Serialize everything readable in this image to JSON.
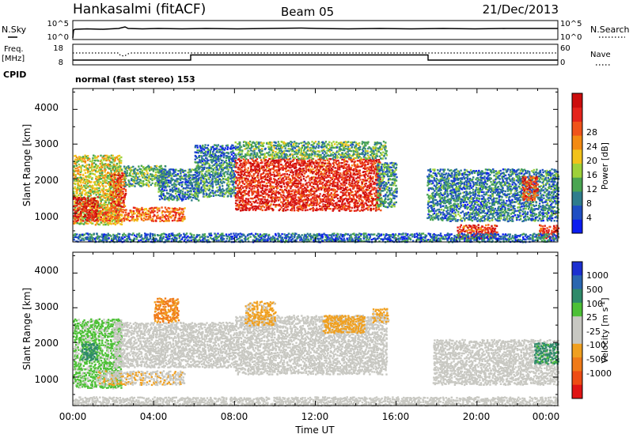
{
  "header": {
    "station": "Hankasalmi (fitACF)",
    "beam": "Beam 05",
    "date": "21/Dec/2013"
  },
  "noise_panel": {
    "left_label": "N.Sky",
    "right_label": "N.Search",
    "left_ticks": [
      "10^5",
      "10^0"
    ],
    "right_ticks": [
      "10^5",
      "10^0"
    ]
  },
  "freq_panel": {
    "left_label_1": "Freq.",
    "left_label_2": "[MHz]",
    "right_label": "Nave",
    "left_ticks": [
      "18",
      "8"
    ],
    "right_ticks": [
      "60",
      "0"
    ]
  },
  "cpid": {
    "label": "CPID",
    "text": "normal (fast stereo) 153"
  },
  "chart_data": [
    {
      "type": "heatmap",
      "name": "power",
      "ylabel": "Slant Range [km]",
      "xlabel": "",
      "y_ticks": [
        "1000",
        "2000",
        "3000",
        "4000"
      ],
      "ylim": [
        180,
        4600
      ],
      "xlim": [
        0,
        24
      ],
      "colorbar": {
        "label": "Power [dB]",
        "ticks": [
          "4",
          "8",
          "12",
          "16",
          "20",
          "24",
          "28"
        ],
        "colors": [
          "#0b1cf0",
          "#1f4ec3",
          "#2f7d8d",
          "#4aa552",
          "#9ed13a",
          "#f2c21a",
          "#f38a12",
          "#f0531a",
          "#e5231b",
          "#cc0d0d"
        ]
      },
      "regions": [
        {
          "t0": 0.0,
          "t1": 2.4,
          "r0": 700,
          "r1": 2700,
          "value": 16
        },
        {
          "t0": 0.0,
          "t1": 1.2,
          "r0": 800,
          "r1": 1500,
          "value": 27
        },
        {
          "t0": 1.2,
          "t1": 5.5,
          "r0": 800,
          "r1": 1200,
          "value": 22
        },
        {
          "t0": 1.8,
          "t1": 2.6,
          "r0": 1200,
          "r1": 2200,
          "value": 24
        },
        {
          "t0": 2.5,
          "t1": 4.6,
          "r0": 1800,
          "r1": 2400,
          "value": 12
        },
        {
          "t0": 4.2,
          "t1": 6.2,
          "r0": 1400,
          "r1": 2300,
          "value": 9
        },
        {
          "t0": 6.0,
          "t1": 8.0,
          "r0": 1500,
          "r1": 2500,
          "value": 10
        },
        {
          "t0": 6.0,
          "t1": 8.0,
          "r0": 2500,
          "r1": 3000,
          "value": 8
        },
        {
          "t0": 8.0,
          "t1": 15.2,
          "r0": 1100,
          "r1": 2600,
          "value": 26
        },
        {
          "t0": 8.0,
          "t1": 15.5,
          "r0": 2600,
          "r1": 3100,
          "value": 12
        },
        {
          "t0": 15.0,
          "t1": 16.0,
          "r0": 1200,
          "r1": 2500,
          "value": 10
        },
        {
          "t0": 17.5,
          "t1": 24.0,
          "r0": 800,
          "r1": 2300,
          "value": 9
        },
        {
          "t0": 22.2,
          "t1": 23.0,
          "r0": 1400,
          "r1": 2100,
          "value": 24
        },
        {
          "t0": 19.0,
          "t1": 21.0,
          "r0": 300,
          "r1": 700,
          "value": 25
        },
        {
          "t0": 23.0,
          "t1": 24.0,
          "r0": 300,
          "r1": 700,
          "value": 26
        },
        {
          "t0": 0.0,
          "t1": 24.0,
          "r0": 200,
          "r1": 450,
          "value": 8
        }
      ]
    },
    {
      "type": "heatmap",
      "name": "velocity",
      "ylabel": "Slant Range [km]",
      "xlabel": "Time UT",
      "x_ticks": [
        "00:00",
        "04:00",
        "08:00",
        "12:00",
        "16:00",
        "20:00",
        "00:00"
      ],
      "y_ticks": [
        "1000",
        "2000",
        "3000",
        "4000"
      ],
      "ylim": [
        180,
        4600
      ],
      "xlim": [
        0,
        24
      ],
      "colorbar": {
        "label": "Velocity [m s",
        "label_superscript": "-1",
        "label_close": "]",
        "ticks": [
          "1000",
          "500",
          "100",
          "25",
          "-25",
          "-100",
          "-500",
          "-1000"
        ],
        "colors": [
          "#1b2fd0",
          "#2a66b0",
          "#2f8a6a",
          "#4dc036",
          "#c8c8c2",
          "#c8c8c2",
          "#f0a020",
          "#f07a18",
          "#ee4c14",
          "#e01414"
        ]
      },
      "regions": [
        {
          "t0": 0.0,
          "t1": 2.4,
          "r0": 700,
          "r1": 2700,
          "value": 40
        },
        {
          "t0": 0.4,
          "t1": 1.2,
          "r0": 1500,
          "r1": 2000,
          "value": 300
        },
        {
          "t0": 1.2,
          "t1": 5.5,
          "r0": 800,
          "r1": 1200,
          "value": -80
        },
        {
          "t0": 2.0,
          "t1": 8.0,
          "r0": 1300,
          "r1": 2600,
          "value": 0
        },
        {
          "t0": 4.0,
          "t1": 5.2,
          "r0": 2600,
          "r1": 3300,
          "value": -600
        },
        {
          "t0": 8.0,
          "t1": 15.5,
          "r0": 1100,
          "r1": 2800,
          "value": 0
        },
        {
          "t0": 8.5,
          "t1": 10.0,
          "r0": 2500,
          "r1": 3200,
          "value": -150
        },
        {
          "t0": 12.3,
          "t1": 14.4,
          "r0": 2300,
          "r1": 2800,
          "value": -300
        },
        {
          "t0": 14.8,
          "t1": 15.6,
          "r0": 2600,
          "r1": 3000,
          "value": -150
        },
        {
          "t0": 17.8,
          "t1": 24.0,
          "r0": 800,
          "r1": 2100,
          "value": 0
        },
        {
          "t0": 22.8,
          "t1": 24.0,
          "r0": 1400,
          "r1": 2000,
          "value": 150
        },
        {
          "t0": 0.0,
          "t1": 24.0,
          "r0": 200,
          "r1": 450,
          "value": 0
        }
      ]
    }
  ]
}
